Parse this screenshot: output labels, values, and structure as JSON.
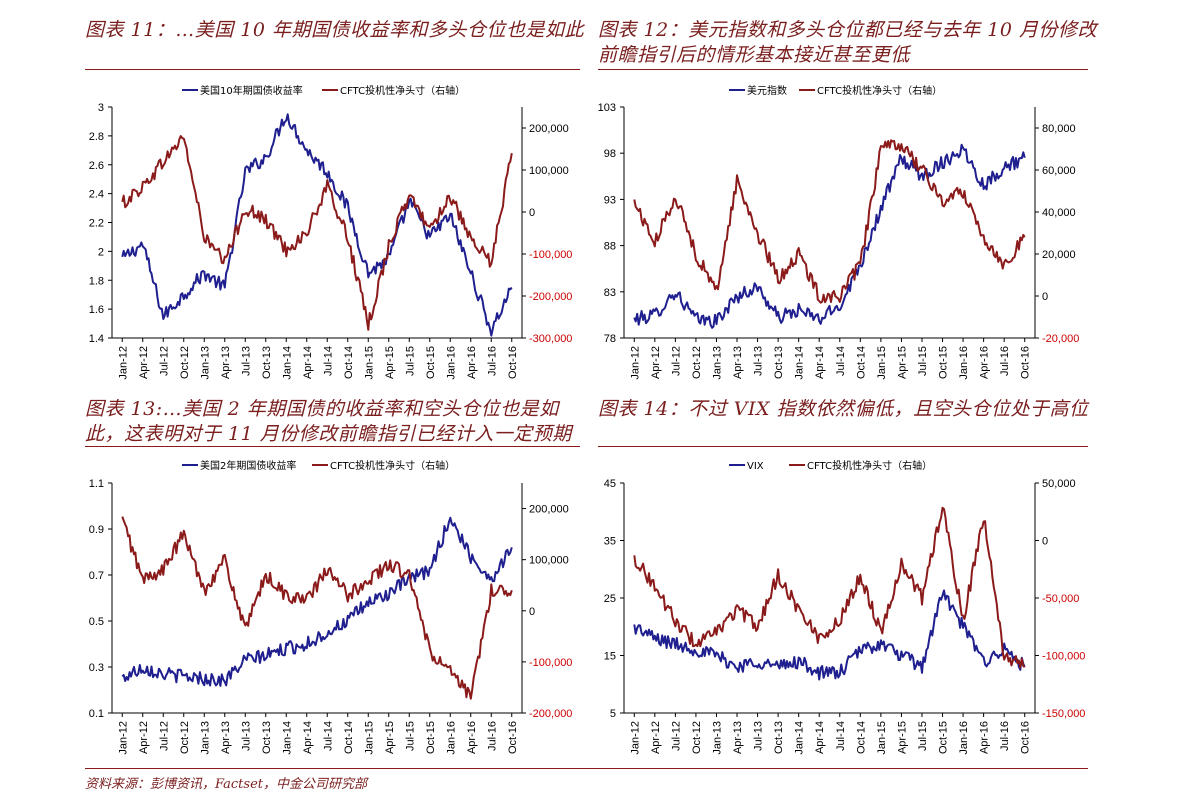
{
  "panels": [
    {
      "title": "图表 11：…美国 10 年期国债收益率和多头仓位也是如此"
    },
    {
      "title": "图表 12：美元指数和多头仓位都已经与去年 10 月份修改前瞻指引后的情形基本接近甚至更低"
    },
    {
      "title": "图表 13:…美国 2 年期国债的收益率和空头仓位也是如此，这表明对于 11 月份修改前瞻指引已经计入一定预期"
    },
    {
      "title": "图表 14：不过 VIX 指数依然偏低，且空头仓位处于高位"
    }
  ],
  "source": "资料来源：彭博资讯，Factset，中金公司研究部",
  "colors": {
    "left_series": "#1f1f8f",
    "right_series": "#8b1a1a",
    "rule": "#8b1a1a"
  },
  "chart_data": [
    {
      "type": "line",
      "x_ticks": [
        "Jan-12",
        "Apr-12",
        "Jul-12",
        "Oct-12",
        "Jan-13",
        "Apr-13",
        "Jul-13",
        "Oct-13",
        "Jan-14",
        "Apr-14",
        "Jul-14",
        "Oct-14",
        "Jan-15",
        "Apr-15",
        "Jul-15",
        "Oct-15",
        "Jan-16",
        "Apr-16",
        "Jul-16",
        "Oct-16"
      ],
      "y_left": {
        "min": 1.4,
        "max": 3,
        "ticks": [
          "1.4",
          "1.6",
          "1.8",
          "2",
          "2.2",
          "2.4",
          "2.6",
          "2.8",
          "3"
        ]
      },
      "y_right": {
        "min": -300000,
        "max": 250000,
        "ticks": [
          "-300,000",
          "-200,000",
          "-100,000",
          "0",
          "100,000",
          "200,000"
        ],
        "tick_values": [
          -300000,
          -200000,
          -100000,
          0,
          100000,
          200000
        ],
        "color": "#cc0000"
      },
      "series": [
        {
          "name": "美国10年期国债收益率",
          "axis": "left",
          "color": "#1f1f8f",
          "x": [
            0,
            1,
            2,
            3,
            4,
            5,
            6,
            7,
            8,
            9,
            10,
            11,
            12,
            13,
            14,
            15,
            16,
            17,
            18,
            19
          ],
          "values": [
            1.95,
            2.05,
            1.55,
            1.7,
            1.85,
            1.75,
            2.55,
            2.65,
            2.95,
            2.7,
            2.55,
            2.3,
            1.85,
            1.95,
            2.35,
            2.1,
            2.25,
            1.85,
            1.45,
            1.75
          ]
        },
        {
          "name": "CFTC投机性净头寸（右轴）",
          "axis": "right",
          "color": "#8b1a1a",
          "x": [
            0,
            1,
            2,
            3,
            4,
            5,
            6,
            7,
            8,
            9,
            10,
            11,
            12,
            13,
            14,
            15,
            16,
            17,
            18,
            19
          ],
          "values": [
            20000,
            60000,
            120000,
            180000,
            -60000,
            -120000,
            10000,
            -20000,
            -90000,
            -50000,
            60000,
            -60000,
            -270000,
            -80000,
            40000,
            -40000,
            40000,
            -70000,
            -120000,
            140000
          ]
        }
      ]
    },
    {
      "type": "line",
      "x_ticks": [
        "Jan-12",
        "Apr-12",
        "Jul-12",
        "Oct-12",
        "Jan-13",
        "Apr-13",
        "Jul-13",
        "Oct-13",
        "Jan-14",
        "Apr-14",
        "Jul-14",
        "Oct-14",
        "Jan-15",
        "Apr-15",
        "Jul-15",
        "Oct-15",
        "Jan-16",
        "Apr-16",
        "Jul-16",
        "Oct-16"
      ],
      "y_left": {
        "min": 78,
        "max": 103,
        "ticks": [
          "78",
          "83",
          "88",
          "93",
          "98",
          "103"
        ]
      },
      "y_right": {
        "min": -20000,
        "max": 90000,
        "ticks": [
          "-20,000",
          "0",
          "20,000",
          "40,000",
          "60,000",
          "80,000"
        ],
        "tick_values": [
          -20000,
          0,
          20000,
          40000,
          60000,
          80000
        ],
        "color": "#cc0000"
      },
      "series": [
        {
          "name": "美元指数",
          "axis": "left",
          "color": "#1f1f8f",
          "x": [
            0,
            1,
            2,
            3,
            4,
            5,
            6,
            7,
            8,
            9,
            10,
            11,
            12,
            13,
            14,
            15,
            16,
            17,
            18,
            19
          ],
          "values": [
            80,
            80.5,
            83,
            80,
            79.8,
            82.5,
            83.5,
            80.2,
            81,
            80,
            81.5,
            86,
            92,
            97.5,
            95.5,
            97,
            98.5,
            94.5,
            96.5,
            97.5
          ]
        },
        {
          "name": "CFTC投机性净头寸（右轴）",
          "axis": "right",
          "color": "#8b1a1a",
          "x": [
            0,
            1,
            2,
            3,
            4,
            5,
            6,
            7,
            8,
            9,
            10,
            11,
            12,
            13,
            14,
            15,
            16,
            17,
            18,
            19
          ],
          "values": [
            45000,
            25000,
            48000,
            20000,
            2000,
            55000,
            30000,
            8000,
            20000,
            0,
            0,
            15000,
            70000,
            72000,
            60000,
            45000,
            50000,
            28000,
            15000,
            28000
          ]
        }
      ]
    },
    {
      "type": "line",
      "x_ticks": [
        "Jan-12",
        "Apr-12",
        "Jul-12",
        "Oct-12",
        "Jan-13",
        "Apr-13",
        "Jul-13",
        "Oct-13",
        "Jan-14",
        "Apr-14",
        "Jul-14",
        "Oct-14",
        "Jan-15",
        "Apr-15",
        "Jul-15",
        "Oct-15",
        "Jan-16",
        "Apr-16",
        "Jul-16",
        "Oct-16"
      ],
      "y_left": {
        "min": 0.1,
        "max": 1.1,
        "ticks": [
          "0.1",
          "0.3",
          "0.5",
          "0.7",
          "0.9",
          "1.1"
        ]
      },
      "y_right": {
        "min": -200000,
        "max": 250000,
        "ticks": [
          "-200,000",
          "-100,000",
          "0",
          "100,000",
          "200,000"
        ],
        "tick_values": [
          -200000,
          -100000,
          0,
          100000,
          200000
        ],
        "color": "#cc0000"
      },
      "series": [
        {
          "name": "美国2年期国债收益率",
          "axis": "left",
          "color": "#1f1f8f",
          "x": [
            0,
            1,
            2,
            3,
            4,
            5,
            6,
            7,
            8,
            9,
            10,
            11,
            12,
            13,
            14,
            15,
            16,
            17,
            18,
            19
          ],
          "values": [
            0.25,
            0.3,
            0.27,
            0.26,
            0.25,
            0.24,
            0.33,
            0.35,
            0.38,
            0.4,
            0.45,
            0.5,
            0.58,
            0.62,
            0.68,
            0.72,
            0.95,
            0.78,
            0.68,
            0.82
          ]
        },
        {
          "name": "CFTC投机性净头寸（右轴）",
          "axis": "right",
          "color": "#8b1a1a",
          "x": [
            0,
            1,
            2,
            3,
            4,
            5,
            6,
            7,
            8,
            9,
            10,
            11,
            12,
            13,
            14,
            15,
            16,
            17,
            18,
            19
          ],
          "values": [
            180000,
            60000,
            80000,
            150000,
            40000,
            100000,
            -40000,
            70000,
            30000,
            20000,
            80000,
            30000,
            60000,
            90000,
            70000,
            -80000,
            -120000,
            -170000,
            40000,
            40000
          ]
        }
      ]
    },
    {
      "type": "line",
      "x_ticks": [
        "Jan-12",
        "Apr-12",
        "Jul-12",
        "Oct-12",
        "Jan-13",
        "Apr-13",
        "Jul-13",
        "Oct-13",
        "Jan-14",
        "Apr-14",
        "Jul-14",
        "Oct-14",
        "Jan-15",
        "Apr-15",
        "Jul-15",
        "Oct-15",
        "Jan-16",
        "Apr-16",
        "Jul-16",
        "Oct-16"
      ],
      "y_left": {
        "min": 5,
        "max": 45,
        "ticks": [
          "5",
          "15",
          "25",
          "35",
          "45"
        ]
      },
      "y_right": {
        "min": -150000,
        "max": 50000,
        "ticks": [
          "-150,000",
          "-100,000",
          "-50,000",
          "0",
          "50,000"
        ],
        "tick_values": [
          -150000,
          -100000,
          -50000,
          0,
          50000
        ],
        "color": "#cc0000"
      },
      "series": [
        {
          "name": "VIX",
          "axis": "left",
          "color": "#1f1f8f",
          "x": [
            0,
            1,
            2,
            3,
            4,
            5,
            6,
            7,
            8,
            9,
            10,
            11,
            12,
            13,
            14,
            15,
            16,
            17,
            18,
            19
          ],
          "values": [
            20,
            18,
            17,
            16,
            15,
            13,
            14,
            13,
            14,
            12,
            12,
            16,
            17,
            15,
            13,
            26,
            20,
            14,
            16,
            13
          ]
        },
        {
          "name": "CFTC投机性净头寸（右轴）",
          "axis": "right",
          "color": "#8b1a1a",
          "x": [
            0,
            1,
            2,
            3,
            4,
            5,
            6,
            7,
            8,
            9,
            10,
            11,
            12,
            13,
            14,
            15,
            16,
            17,
            18,
            19
          ],
          "values": [
            -15000,
            -40000,
            -70000,
            -90000,
            -80000,
            -60000,
            -75000,
            -30000,
            -60000,
            -85000,
            -70000,
            -30000,
            -80000,
            -20000,
            -50000,
            30000,
            -70000,
            20000,
            -100000,
            -110000
          ]
        }
      ]
    }
  ]
}
